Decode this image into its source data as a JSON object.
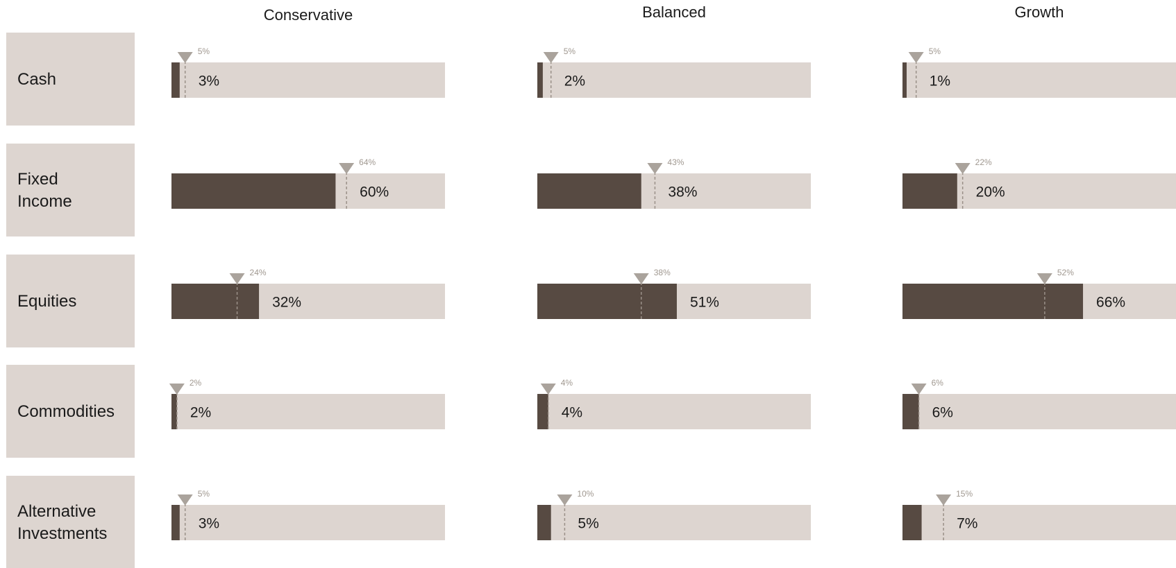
{
  "colors": {
    "row_header_bg": "#ddd5d0",
    "track": "#ddd5d0",
    "fill": "#574a42",
    "marker": "#aaa39c",
    "dash_line": "#9a9088",
    "target_text": "#a09890"
  },
  "chart_data": {
    "type": "bar",
    "title": "",
    "columns": [
      "Conservative",
      "Balanced",
      "Growth"
    ],
    "categories": [
      "Cash",
      "Fixed Income",
      "Equities",
      "Commodities",
      "Alternative Investments"
    ],
    "category_lines": [
      [
        "Cash"
      ],
      [
        "Fixed",
        "Income"
      ],
      [
        "Equities"
      ],
      [
        "Commodities"
      ],
      [
        "Alternative",
        "Investments"
      ]
    ],
    "scale_max_percent": 100,
    "series": [
      {
        "values": [
          3,
          60,
          32,
          2,
          3
        ],
        "value_labels": [
          "3%",
          "60%",
          "32%",
          "2%",
          "3%"
        ],
        "targets": [
          5,
          64,
          24,
          2,
          5
        ],
        "target_labels": [
          "5%",
          "64%",
          "24%",
          "2%",
          "5%"
        ]
      },
      {
        "values": [
          2,
          38,
          51,
          4,
          5
        ],
        "value_labels": [
          "2%",
          "38%",
          "51%",
          "4%",
          "5%"
        ],
        "targets": [
          5,
          43,
          38,
          4,
          10
        ],
        "target_labels": [
          "5%",
          "43%",
          "38%",
          "4%",
          "10%"
        ]
      },
      {
        "values": [
          1,
          20,
          66,
          6,
          7
        ],
        "value_labels": [
          "1%",
          "20%",
          "66%",
          "6%",
          "7%"
        ],
        "targets": [
          5,
          22,
          52,
          6,
          15
        ],
        "target_labels": [
          "5%",
          "22%",
          "52%",
          "6%",
          "15%"
        ]
      }
    ]
  }
}
